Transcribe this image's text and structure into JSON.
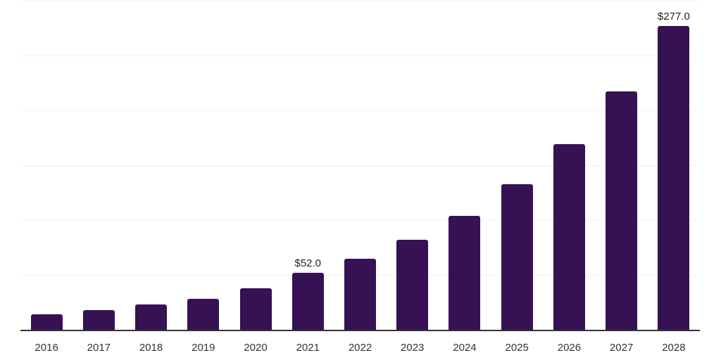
{
  "chart_data": {
    "type": "bar",
    "title": "",
    "categories": [
      "2016",
      "2017",
      "2018",
      "2019",
      "2020",
      "2021",
      "2022",
      "2023",
      "2024",
      "2025",
      "2026",
      "2027",
      "2028"
    ],
    "values": [
      14,
      18,
      23,
      28,
      38,
      52,
      65,
      82,
      104,
      133,
      169,
      217,
      277
    ],
    "bar_labels": [
      "",
      "",
      "",
      "",
      "",
      "$52.0",
      "",
      "",
      "",
      "",
      "",
      "",
      "$277.0"
    ],
    "xlabel": "",
    "ylabel": "",
    "ylim": [
      0,
      300
    ],
    "gridline_step": 50,
    "grid": "horizontal, no y tick labels",
    "legend": "none",
    "colors": {
      "bar": "#361154",
      "axis_line": "#333333",
      "gridline": "#f0f0f0",
      "year_label": "#333333",
      "value_label": "#222222",
      "background": "#ffffff"
    }
  }
}
